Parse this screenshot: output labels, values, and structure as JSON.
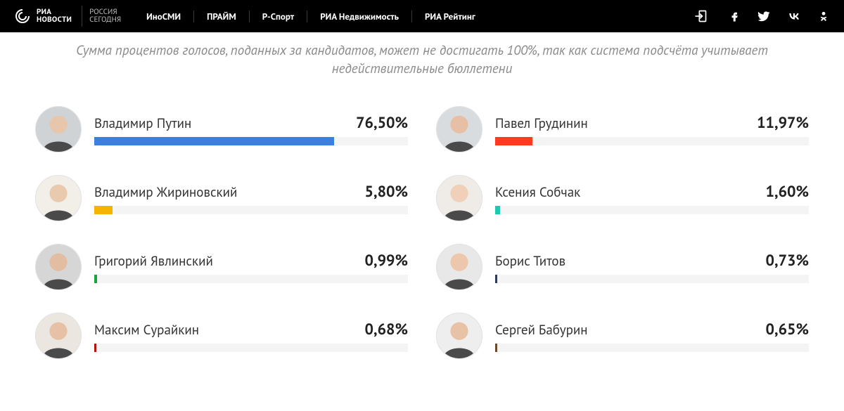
{
  "header": {
    "logo_line1": "РИА",
    "logo_line2": "НОВОСТИ",
    "logo_sub_line1": "РОССИЯ",
    "logo_sub_line2": "СЕГОДНЯ",
    "nav": [
      "ИноСМИ",
      "ПРАЙМ",
      "Р-Спорт",
      "РИА Недвижимость",
      "РИА Рейтинг"
    ],
    "colors": {
      "bg": "#000000",
      "text": "#ffffff",
      "divider": "#3a3a3a",
      "sub": "#bdbdbd"
    }
  },
  "disclaimer": "Сумма процентов голосов, поданных за кандидатов, может не достигать 100%, так как система подсчёта учитывает недействительные бюллетени",
  "track_color": "#f4f4f4",
  "candidates": [
    {
      "name": "Владимир Путин",
      "pct_label": "76,50%",
      "pct": 76.5,
      "bar_color": "#3b7fe0",
      "avatar_bg": "#cfd3d6",
      "skin": "#e8c6ac"
    },
    {
      "name": "Павел Грудинин",
      "pct_label": "11,97%",
      "pct": 11.97,
      "bar_color": "#ff3b1f",
      "avatar_bg": "#d9dcdf",
      "skin": "#e6bfa4"
    },
    {
      "name": "Владимир Жириновский",
      "pct_label": "5,80%",
      "pct": 5.8,
      "bar_color": "#f5b400",
      "avatar_bg": "#f2efe9",
      "skin": "#e9caae"
    },
    {
      "name": "Ксения Собчак",
      "pct_label": "1,60%",
      "pct": 1.6,
      "bar_color": "#1fc9b0",
      "avatar_bg": "#efece7",
      "skin": "#f0d0b8"
    },
    {
      "name": "Григорий Явлинский",
      "pct_label": "0,99%",
      "pct": 0.99,
      "bar_color": "#1aa33a",
      "avatar_bg": "#d6d6d6",
      "skin": "#e3bda2"
    },
    {
      "name": "Борис Титов",
      "pct_label": "0,73%",
      "pct": 0.73,
      "bar_color": "#2f3a55",
      "avatar_bg": "#e8e8e8",
      "skin": "#ecc7ab"
    },
    {
      "name": "Максим Сурайкин",
      "pct_label": "0,68%",
      "pct": 0.68,
      "bar_color": "#b0150f",
      "avatar_bg": "#ebe6df",
      "skin": "#e6c1a6"
    },
    {
      "name": "Сергей Бабурин",
      "pct_label": "0,65%",
      "pct": 0.65,
      "bar_color": "#6a4a2a",
      "avatar_bg": "#eeeeee",
      "skin": "#e7c2a6"
    }
  ]
}
